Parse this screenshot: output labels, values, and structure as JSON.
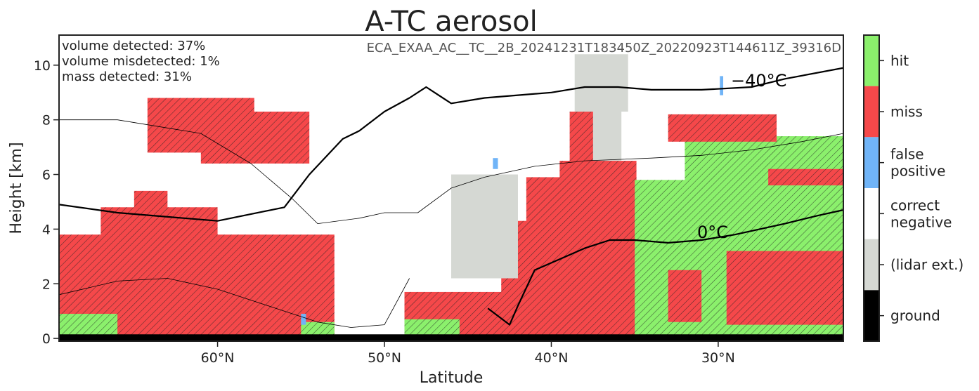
{
  "chart_data": {
    "type": "heatmap",
    "title": "A-TC aerosol",
    "xlabel": "Latitude",
    "ylabel": "Height [km]",
    "xlim": [
      69.5,
      22.5
    ],
    "ylim": [
      -0.1,
      11.1
    ],
    "x_ticks": [
      60,
      50,
      40,
      30
    ],
    "x_tick_labels": [
      "60$^\\circ$N",
      "50$^\\circ$N",
      "40$^\\circ$N",
      "30$^\\circ$N"
    ],
    "x_tick_text": [
      "60°N",
      "50°N",
      "40°N",
      "30°N"
    ],
    "y_ticks": [
      0,
      2,
      4,
      6,
      8,
      10
    ],
    "y_tick_labels": [
      "0",
      "2",
      "4",
      "6",
      "8",
      "10"
    ],
    "stats": [
      "volume detected: 37%",
      "volume misdetected: 1%",
      "mass detected: 31%"
    ],
    "filename": "ECA_EXAA_AC__TC__2B_20241231T183450Z_20220923T144611Z_39316D",
    "isotherm_labels": [
      "−40°C",
      "0°C"
    ],
    "colorbar": {
      "categories": [
        "hit",
        "miss",
        "false\npositive",
        "correct\nnegative",
        "(lidar ext.)",
        "ground"
      ],
      "labels": [
        [
          "hit"
        ],
        [
          "miss"
        ],
        [
          "false",
          "positive"
        ],
        [
          "correct",
          "negative"
        ],
        [
          "(lidar ext.)"
        ],
        [
          "ground"
        ]
      ],
      "colors": [
        "#8bf06c",
        "#f5484a",
        "#70b4f7",
        "#ffffff",
        "#d5d8d3",
        "#000000"
      ]
    },
    "colors": {
      "hit": "#8bf06c",
      "miss": "#f5484a",
      "false_positive": "#70b4f7",
      "correct_negative": "#ffffff",
      "lidar_ext": "#d5d8d3",
      "ground": "#000000"
    },
    "regions": [
      {
        "category": "miss",
        "lat": [
          64.2,
          57.8
        ],
        "h": [
          6.8,
          8.8
        ]
      },
      {
        "category": "miss",
        "lat": [
          61.0,
          54.5
        ],
        "h": [
          6.4,
          8.3
        ]
      },
      {
        "category": "miss",
        "lat": [
          69.5,
          53.0
        ],
        "h": [
          0.1,
          3.8
        ]
      },
      {
        "category": "miss",
        "lat": [
          65.0,
          63.0
        ],
        "h": [
          3.5,
          5.4
        ]
      },
      {
        "category": "miss",
        "lat": [
          67.0,
          60.0
        ],
        "h": [
          3.5,
          4.8
        ]
      },
      {
        "category": "hit",
        "lat": [
          69.5,
          66.0
        ],
        "h": [
          0.1,
          0.9
        ]
      },
      {
        "category": "hit",
        "lat": [
          55.0,
          53.0
        ],
        "h": [
          0.1,
          0.6
        ]
      },
      {
        "category": "miss",
        "lat": [
          48.8,
          41.5
        ],
        "h": [
          0.1,
          1.7
        ]
      },
      {
        "category": "hit",
        "lat": [
          48.8,
          45.5
        ],
        "h": [
          0.1,
          0.7
        ]
      },
      {
        "category": "miss",
        "lat": [
          43.0,
          34.9
        ],
        "h": [
          0.1,
          4.3
        ]
      },
      {
        "category": "miss",
        "lat": [
          41.5,
          34.9
        ],
        "h": [
          4.0,
          5.9
        ]
      },
      {
        "category": "miss",
        "lat": [
          39.5,
          34.9
        ],
        "h": [
          5.8,
          6.5
        ]
      },
      {
        "category": "miss",
        "lat": [
          38.9,
          36.0
        ],
        "h": [
          6.4,
          8.3
        ]
      },
      {
        "category": "lidar_ext",
        "lat": [
          46.0,
          42.0
        ],
        "h": [
          2.2,
          6.0
        ]
      },
      {
        "category": "lidar_ext",
        "lat": [
          38.6,
          35.4
        ],
        "h": [
          8.3,
          10.4
        ]
      },
      {
        "category": "lidar_ext",
        "lat": [
          37.5,
          35.8
        ],
        "h": [
          6.5,
          8.3
        ]
      },
      {
        "category": "hit",
        "lat": [
          35.0,
          22.5
        ],
        "h": [
          0.1,
          5.8
        ]
      },
      {
        "category": "hit",
        "lat": [
          32.0,
          22.5
        ],
        "h": [
          5.6,
          7.4
        ]
      },
      {
        "category": "miss",
        "lat": [
          33.0,
          26.5
        ],
        "h": [
          7.2,
          8.2
        ]
      },
      {
        "category": "miss",
        "lat": [
          27.0,
          22.5
        ],
        "h": [
          5.6,
          6.2
        ]
      },
      {
        "category": "miss",
        "lat": [
          29.5,
          22.5
        ],
        "h": [
          0.5,
          3.2
        ]
      },
      {
        "category": "miss",
        "lat": [
          33.0,
          31.0
        ],
        "h": [
          0.6,
          2.5
        ]
      },
      {
        "category": "false_positive",
        "lat": [
          55.0,
          54.7
        ],
        "h": [
          0.5,
          0.9
        ]
      },
      {
        "category": "false_positive",
        "lat": [
          43.5,
          43.2
        ],
        "h": [
          6.2,
          6.6
        ]
      },
      {
        "category": "false_positive",
        "lat": [
          29.9,
          29.7
        ],
        "h": [
          8.9,
          9.6
        ]
      }
    ],
    "isotherm_minus40": {
      "lat": [
        69.5,
        66.0,
        62.0,
        60.0,
        56.0,
        54.5,
        52.5,
        51.5,
        50.0,
        48.5,
        47.5,
        46.0,
        44.0,
        42.0,
        40.0,
        38.0,
        36.0,
        34.0,
        31.0,
        28.0,
        26.0,
        22.5
      ],
      "height": [
        4.9,
        4.6,
        4.4,
        4.3,
        4.8,
        6.0,
        7.3,
        7.6,
        8.3,
        8.8,
        9.2,
        8.6,
        8.8,
        8.9,
        9.0,
        9.2,
        9.2,
        9.1,
        9.1,
        9.2,
        9.5,
        9.9
      ]
    },
    "isotherm_zero": {
      "lat": [
        43.8,
        42.5,
        42.0,
        41.0,
        39.5,
        38.0,
        36.5,
        35.0,
        33.0,
        31.0,
        29.0,
        26.0,
        24.0,
        22.5
      ],
      "height": [
        1.1,
        0.5,
        1.2,
        2.5,
        2.9,
        3.3,
        3.6,
        3.6,
        3.5,
        3.6,
        3.8,
        4.2,
        4.5,
        4.7
      ]
    },
    "isotherm_thin_upper": {
      "lat": [
        69.5,
        66.0,
        61.0,
        58.0,
        55.5,
        54.0,
        51.5,
        50.0,
        48.0,
        46.0,
        44.0,
        41.0,
        38.0,
        34.0,
        31.0,
        28.0,
        25.0,
        22.5
      ],
      "height": [
        8.0,
        8.0,
        7.5,
        6.4,
        5.1,
        4.2,
        4.4,
        4.6,
        4.6,
        5.5,
        5.9,
        6.3,
        6.5,
        6.6,
        6.7,
        6.9,
        7.2,
        7.5
      ]
    },
    "isotherm_thin_lower": {
      "lat": [
        69.5,
        66.0,
        63.0,
        60.0,
        56.0,
        54.0,
        52.0,
        50.0,
        48.5
      ],
      "height": [
        1.6,
        2.1,
        2.2,
        1.8,
        1.0,
        0.6,
        0.4,
        0.5,
        2.2
      ]
    }
  }
}
